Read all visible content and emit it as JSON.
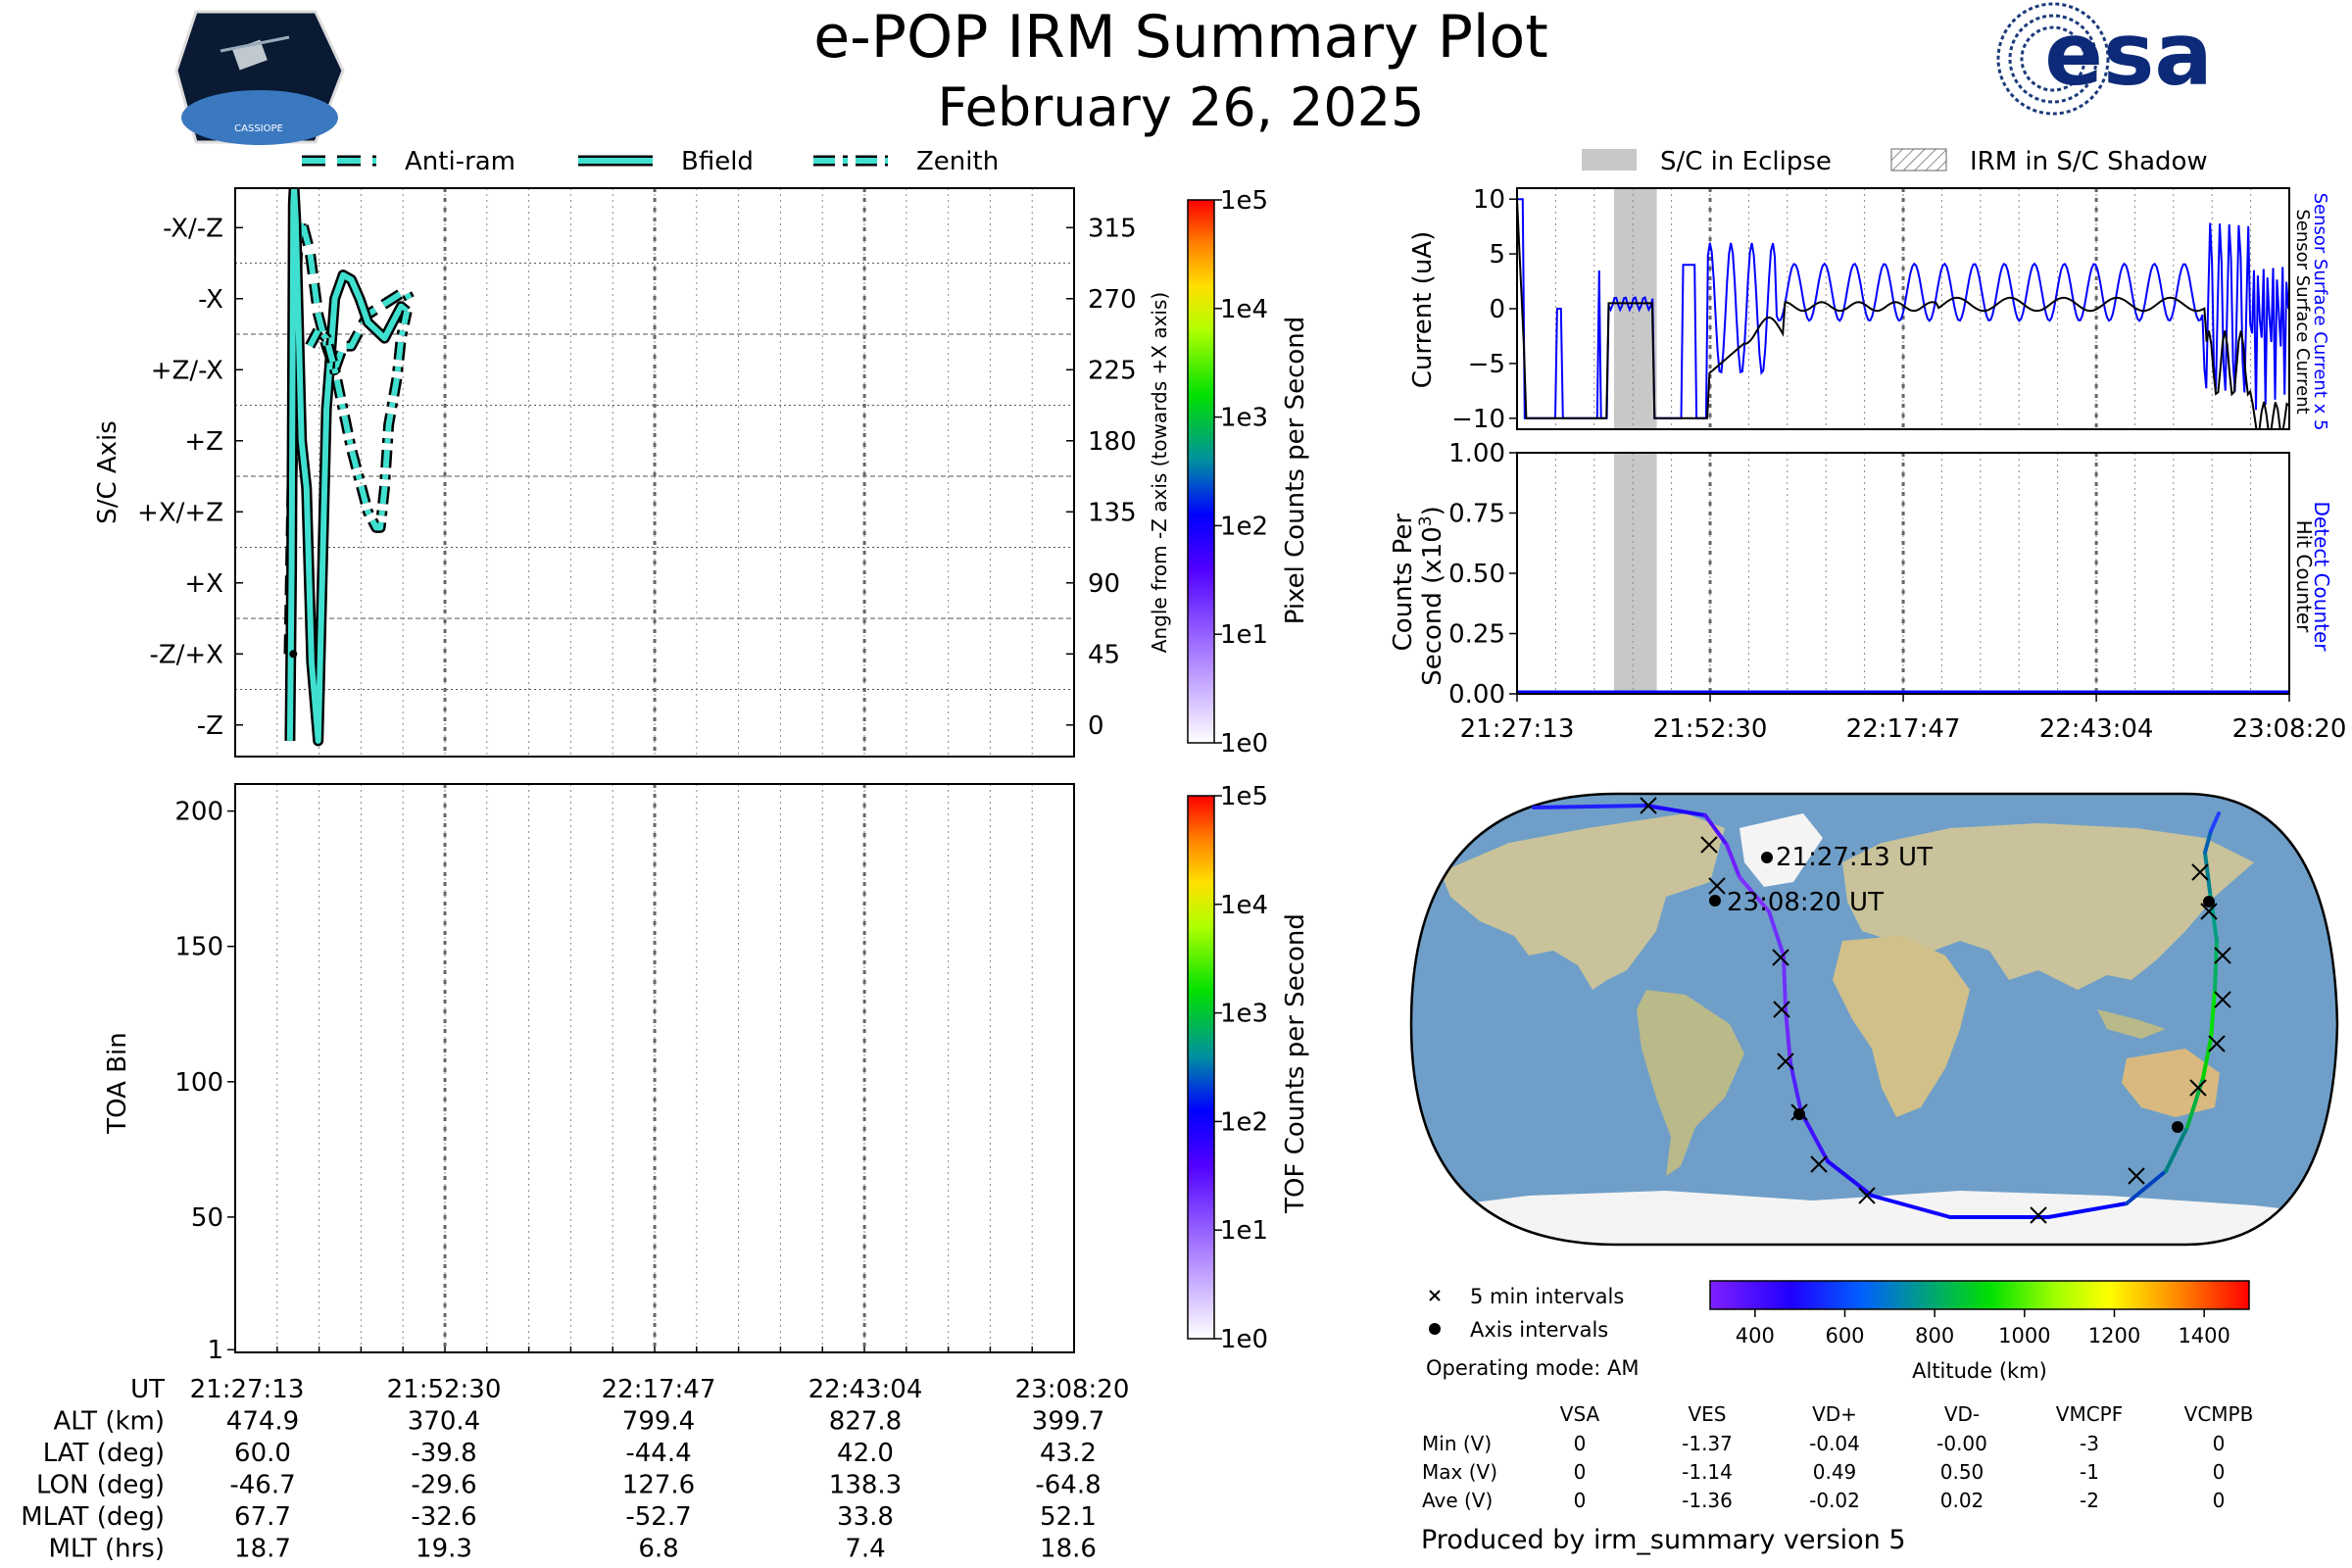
{
  "title": "e-POP IRM Summary Plot",
  "subtitle": "February 26, 2025",
  "logos": {
    "left": "cassiope-mission-logo",
    "left_text": "CASSIOPE",
    "right": "esa-logo",
    "right_text": "esa"
  },
  "colors": {
    "trace": "#40e0d0",
    "blue": "#0000ff",
    "eclipse": "#c8c8c8",
    "map_ocean": "#6f9fc8",
    "map_land": "#c9c29a"
  },
  "legend_top_left": [
    {
      "label": "Anti-ram",
      "style": "dashed"
    },
    {
      "label": "Bfield",
      "style": "solid"
    },
    {
      "label": "Zenith",
      "style": "dashdot"
    }
  ],
  "legend_top_right": [
    {
      "label": "S/C in Eclipse",
      "style": "gray-patch"
    },
    {
      "label": "IRM in S/C Shadow",
      "style": "hatch-patch"
    }
  ],
  "chart_data": [
    {
      "id": "sc-axis",
      "type": "line",
      "ylabel": "S/C Axis",
      "y2label": "Angle from -Z axis (towards +X axis)",
      "y_tick_labels": [
        "-Z",
        "-Z/+X",
        "+X",
        "+X/+Z",
        "+Z",
        "+Z/-X",
        "-X",
        "-X/-Z"
      ],
      "y2_ticks": [
        0,
        45,
        90,
        135,
        180,
        225,
        270,
        315
      ],
      "ylim": [
        -20,
        340
      ],
      "time_ticks": [
        "21:27:13",
        "21:52:30",
        "22:17:47",
        "22:43:04",
        "23:08:20"
      ],
      "series": [
        {
          "name": "Anti-ram",
          "x_min": [
            6.5,
            7.0,
            7.5,
            8.0,
            9.0,
            10.0,
            11.0,
            12.0,
            13.0,
            14.0,
            15.0,
            16.0,
            17.5,
            19.0,
            20.5,
            21.0
          ],
          "y": [
            45,
            200,
            300,
            320,
            300,
            260,
            240,
            225,
            240,
            240,
            250,
            260,
            265,
            270,
            275,
            270
          ]
        },
        {
          "name": "Bfield",
          "x_min": [
            6.6,
            6.8,
            7.0,
            7.1,
            7.3,
            7.5,
            7.7,
            8.0,
            8.6,
            9.2,
            10.0,
            11.0,
            12.0,
            13.0,
            14.0,
            15.0,
            16.0,
            17.0,
            18.0,
            19.0,
            20.0,
            20.7
          ],
          "y": [
            -10,
            100,
            330,
            340,
            320,
            280,
            240,
            180,
            150,
            40,
            -10,
            200,
            270,
            285,
            282,
            270,
            255,
            250,
            245,
            255,
            265,
            262
          ]
        },
        {
          "name": "Zenith",
          "x_min": [
            9.0,
            10.0,
            11.0,
            12.0,
            13.0,
            14.0,
            15.0,
            16.0,
            17.0,
            17.5,
            18.0,
            18.5,
            19.5,
            20.0,
            20.7
          ],
          "y": [
            240,
            250,
            245,
            225,
            200,
            175,
            155,
            135,
            125,
            125,
            150,
            190,
            220,
            245,
            262
          ]
        }
      ],
      "points": [
        {
          "x_min": 7.0,
          "y": 45
        }
      ]
    },
    {
      "id": "current",
      "type": "line",
      "ylabel": "Current (uA)",
      "y_right_label_blue": "Sensor Surface Current x 5",
      "y_right_label": "Sensor Surface Current",
      "yticks": [
        10,
        5,
        0,
        -5,
        -10
      ],
      "ylim": [
        -11,
        11
      ],
      "eclipse_min": [
        12.7,
        18.3
      ],
      "series": [
        {
          "name": "Sensor Surface Current x 5",
          "color": "#0000ff"
        },
        {
          "name": "Sensor Surface Current",
          "color": "#000000"
        }
      ]
    },
    {
      "id": "counts",
      "type": "line",
      "ylabel_lines": [
        "Counts Per",
        "Second (x10",
        "3",
        ")"
      ],
      "y_right_label_blue": "Detect Counter",
      "y_right_label": "Hit Counter",
      "yticks": [
        "1.00",
        "0.75",
        "0.50",
        "0.25",
        "0.00"
      ],
      "ylim": [
        0,
        1
      ],
      "eclipse_min": [
        12.7,
        18.3
      ],
      "time_ticks": [
        "21:27:13",
        "21:52:30",
        "22:17:47",
        "22:43:04",
        "23:08:20"
      ],
      "series": [
        {
          "name": "Detect Counter",
          "constant": 0
        }
      ]
    },
    {
      "id": "toa",
      "type": "heatmap",
      "ylabel": "TOA Bin",
      "yticks": [
        200,
        150,
        100,
        50,
        1
      ],
      "ylim": [
        0,
        210
      ]
    }
  ],
  "colorbar_pixel": {
    "label": "Pixel Counts per Second",
    "ticks": [
      "1e5",
      "1e4",
      "1e3",
      "1e2",
      "1e1",
      "1e0"
    ]
  },
  "colorbar_tof": {
    "label": "TOF Counts per Second",
    "ticks": [
      "1e5",
      "1e4",
      "1e3",
      "1e2",
      "1e1",
      "1e0"
    ]
  },
  "altitude_colorbar": {
    "label": "Altitude (km)",
    "ticks": [
      "400",
      "600",
      "800",
      "1000",
      "1200",
      "1400"
    ],
    "range": [
      300,
      1500
    ]
  },
  "map": {
    "start_label": "21:27:13 UT",
    "end_label": "23:08:20 UT",
    "legend": [
      {
        "marker": "×",
        "label": "5 min intervals"
      },
      {
        "marker": "●",
        "label": "Axis intervals"
      }
    ]
  },
  "operating_mode": "Operating mode: AM",
  "voltage_table": {
    "headers": [
      "VSA",
      "VES",
      "VD+",
      "VD-",
      "VMCPF",
      "VCMPB"
    ],
    "rows": [
      {
        "label": "Min (V)",
        "values": [
          "0",
          "-1.37",
          "-0.04",
          "-0.00",
          "-3",
          "0"
        ]
      },
      {
        "label": "Max (V)",
        "values": [
          "0",
          "-1.14",
          "0.49",
          "0.50",
          "-1",
          "0"
        ]
      },
      {
        "label": "Ave (V)",
        "values": [
          "0",
          "-1.36",
          "-0.02",
          "0.02",
          "-2",
          "0"
        ]
      }
    ]
  },
  "footer": "Produced by irm_summary version 5",
  "ephemeris": {
    "rows": [
      {
        "label": "UT",
        "values": [
          "21:27:13",
          "21:52:30",
          "22:17:47",
          "22:43:04",
          "23:08:20"
        ]
      },
      {
        "label": "ALT (km)",
        "values": [
          "474.9",
          "370.4",
          "799.4",
          "827.8",
          "399.7"
        ]
      },
      {
        "label": "LAT (deg)",
        "values": [
          "60.0",
          "-39.8",
          "-44.4",
          "42.0",
          "43.2"
        ]
      },
      {
        "label": "LON (deg)",
        "values": [
          "-46.7",
          "-29.6",
          "127.6",
          "138.3",
          "-64.8"
        ]
      },
      {
        "label": "MLAT (deg)",
        "values": [
          "67.7",
          "-32.6",
          "-52.7",
          "33.8",
          "52.1"
        ]
      },
      {
        "label": "MLT (hrs)",
        "values": [
          "18.7",
          "19.3",
          "6.8",
          "7.4",
          "18.6"
        ]
      }
    ]
  }
}
